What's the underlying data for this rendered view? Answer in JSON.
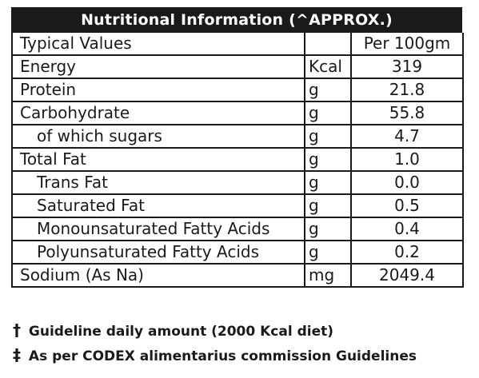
{
  "title": "Nutritional Information (^APPROX.)",
  "header": {
    "name": "Typical Values",
    "unit": "",
    "value": "Per 100gm"
  },
  "rows": [
    {
      "name": "Energy",
      "unit": "Kcal",
      "value": "319"
    },
    {
      "name": "Protein",
      "unit": "g",
      "value": "21.8"
    },
    {
      "name": "Carbohydrate",
      "unit": "g",
      "value": "55.8"
    },
    {
      "name": "of which sugars",
      "unit": "g",
      "value": "4.7"
    },
    {
      "name": "Total Fat",
      "unit": "g",
      "value": "1.0"
    },
    {
      "name": "Trans Fat",
      "unit": "g",
      "value": "0.0"
    },
    {
      "name": "Saturated Fat",
      "unit": "g",
      "value": "0.5"
    },
    {
      "name": "Monounsaturated Fatty Acids",
      "unit": "g",
      "value": "0.4"
    },
    {
      "name": "Polyunsaturated Fatty Acids",
      "unit": "g",
      "value": "0.2"
    },
    {
      "name": "Sodium (As Na)",
      "unit": "mg",
      "value": "2049.4"
    }
  ],
  "footnotes": [
    {
      "mark": "†",
      "text": "Guideline daily amount (2000 Kcal diet)"
    },
    {
      "mark": "‡",
      "text": "As per CODEX alimentarius commission Guidelines"
    }
  ]
}
